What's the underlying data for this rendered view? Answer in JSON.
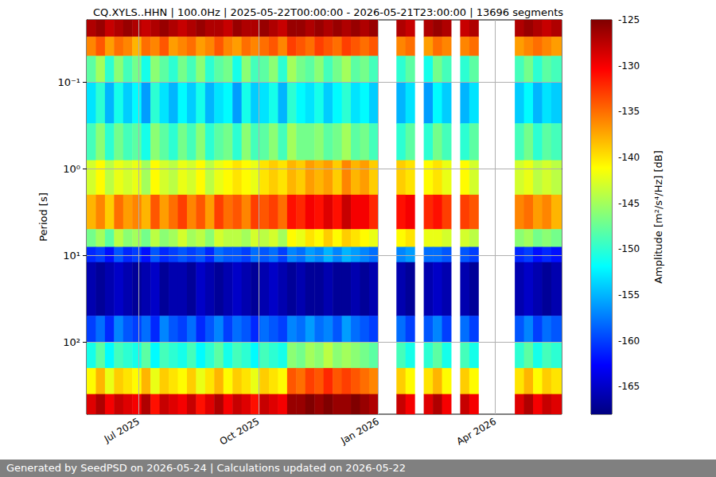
{
  "chart_data": {
    "type": "heatmap",
    "title": "CQ.XYLS..HHN | 100.0Hz | 2025-05-22T00:00:00 - 2026-05-21T23:00:00 | 13696 segments",
    "footer": "Generated by SeedPSD on 2026-05-24 | Calculations updated on 2026-05-22",
    "y_label": "Period [s]",
    "log": "y",
    "grid": true,
    "xlim": [
      "2025-05-22",
      "2026-05-22"
    ],
    "xticks": [
      {
        "value": "2025-07-01",
        "label": "Jul 2025"
      },
      {
        "value": "2025-10-01",
        "label": "Oct 2025"
      },
      {
        "value": "2026-01-01",
        "label": "Jan 2026"
      },
      {
        "value": "2026-04-01",
        "label": "Apr 2026"
      }
    ],
    "ylim": [
      0.0192,
      683
    ],
    "yticks": [
      {
        "value": 0.1,
        "label": "10⁻¹"
      },
      {
        "value": 1,
        "label": "10⁰"
      },
      {
        "value": 10,
        "label": "10¹"
      },
      {
        "value": 100,
        "label": "10²"
      }
    ],
    "time_bins": [
      "2025-05-22",
      "2025-05-29",
      "2025-06-05",
      "2025-06-12",
      "2025-06-19",
      "2025-06-26",
      "2025-07-03",
      "2025-07-10",
      "2025-07-17",
      "2025-07-24",
      "2025-07-31",
      "2025-08-07",
      "2025-08-14",
      "2025-08-21",
      "2025-08-28",
      "2025-09-04",
      "2025-09-11",
      "2025-09-18",
      "2025-09-25",
      "2025-10-02",
      "2025-10-09",
      "2025-10-16",
      "2025-10-23",
      "2025-10-30",
      "2025-11-06",
      "2025-11-13",
      "2025-11-20",
      "2025-11-27",
      "2025-12-04",
      "2025-12-11",
      "2025-12-18",
      "2025-12-25",
      "2026-01-01",
      "2026-01-08",
      "2026-01-15",
      "2026-01-22",
      "2026-01-29",
      "2026-02-05",
      "2026-02-12",
      "2026-02-19",
      "2026-02-26",
      "2026-03-05",
      "2026-03-12",
      "2026-03-19",
      "2026-03-26",
      "2026-04-02",
      "2026-04-09",
      "2026-04-16",
      "2026-04-23",
      "2026-04-30",
      "2026-05-07",
      "2026-05-14",
      "2026-05-22"
    ],
    "period_bins": [
      0.0192,
      0.03,
      0.05,
      0.1,
      0.3,
      0.8,
      2,
      5,
      8,
      12,
      50,
      100,
      200,
      400,
      683
    ],
    "cells": [
      [
        -127,
        -126,
        -128,
        -127,
        -126,
        -127,
        -128,
        -127,
        -126,
        -127,
        -128,
        -127,
        -126,
        -127,
        -127,
        -128,
        -126,
        -127,
        -127,
        -126,
        -127,
        -128,
        -126,
        -126,
        -127,
        -126,
        -127,
        -126,
        -127,
        -126,
        -127,
        -126,
        null,
        null,
        -127,
        -128,
        null,
        -127,
        -126,
        -127,
        null,
        -128,
        -127,
        null,
        null,
        null,
        null,
        -127,
        -126,
        -127,
        -128,
        -127
      ],
      [
        -136,
        -134,
        -137,
        -135,
        -136,
        -138,
        -135,
        -136,
        -134,
        -137,
        -136,
        -135,
        -137,
        -136,
        -134,
        -136,
        -137,
        -135,
        -136,
        -135,
        -134,
        -136,
        -133,
        -134,
        -135,
        -133,
        -134,
        -135,
        -133,
        -134,
        -135,
        -134,
        null,
        null,
        -136,
        -135,
        null,
        -137,
        -135,
        -136,
        null,
        -136,
        -135,
        null,
        null,
        null,
        null,
        -137,
        -136,
        -135,
        -136,
        -137
      ],
      [
        -148,
        -145,
        -150,
        -146,
        -149,
        -147,
        -151,
        -146,
        -148,
        -150,
        -147,
        -149,
        -146,
        -150,
        -148,
        -147,
        -151,
        -146,
        -149,
        -148,
        -146,
        -150,
        -145,
        -147,
        -148,
        -146,
        -149,
        -147,
        -145,
        -148,
        -147,
        -149,
        null,
        null,
        -150,
        -148,
        null,
        -151,
        -147,
        -149,
        null,
        -150,
        -148,
        null,
        null,
        null,
        null,
        -149,
        -147,
        -150,
        -148,
        -149
      ],
      [
        -153,
        -150,
        -155,
        -151,
        -154,
        -152,
        -156,
        -150,
        -153,
        -155,
        -152,
        -154,
        -151,
        -155,
        -153,
        -152,
        -156,
        -151,
        -154,
        -153,
        -151,
        -155,
        -150,
        -152,
        -153,
        -151,
        -154,
        -152,
        -150,
        -153,
        -152,
        -154,
        null,
        null,
        -155,
        -153,
        null,
        -156,
        -152,
        -154,
        null,
        -155,
        -153,
        null,
        null,
        null,
        null,
        -154,
        -152,
        -155,
        -153,
        -154
      ],
      [
        -149,
        -146,
        -150,
        -147,
        -149,
        -148,
        -151,
        -146,
        -148,
        -150,
        -147,
        -149,
        -146,
        -150,
        -148,
        -147,
        -150,
        -146,
        -149,
        -148,
        -146,
        -149,
        -145,
        -147,
        -147,
        -146,
        -148,
        -147,
        -145,
        -148,
        -147,
        -149,
        null,
        null,
        -150,
        -148,
        null,
        -150,
        -147,
        -149,
        null,
        -150,
        -148,
        null,
        null,
        null,
        null,
        -149,
        -147,
        -150,
        -148,
        -149
      ],
      [
        -143,
        -141,
        -144,
        -142,
        -143,
        -142,
        -145,
        -141,
        -143,
        -144,
        -142,
        -143,
        -141,
        -144,
        -142,
        -141,
        -140,
        -141,
        -142,
        -140,
        -139,
        -140,
        -138,
        -139,
        -137,
        -138,
        -137,
        -139,
        -136,
        -138,
        -137,
        -139,
        null,
        null,
        -139,
        -140,
        null,
        -141,
        -140,
        -142,
        null,
        -141,
        -143,
        null,
        null,
        null,
        null,
        -143,
        -142,
        -144,
        -143,
        -144
      ],
      [
        -138,
        -136,
        -139,
        -135,
        -137,
        -136,
        -138,
        -134,
        -137,
        -135,
        -133,
        -136,
        -134,
        -137,
        -133,
        -135,
        -134,
        -136,
        -133,
        -134,
        -133,
        -135,
        -131,
        -132,
        -130,
        -131,
        -129,
        -131,
        -128,
        -130,
        -130,
        -132,
        null,
        null,
        -131,
        -130,
        null,
        -132,
        -131,
        -133,
        null,
        -133,
        -134,
        null,
        null,
        null,
        null,
        -136,
        -135,
        -137,
        -136,
        -138
      ],
      [
        -147,
        -145,
        -148,
        -144,
        -146,
        -145,
        -147,
        -144,
        -146,
        -145,
        -143,
        -145,
        -144,
        -146,
        -143,
        -144,
        -144,
        -145,
        -143,
        -144,
        -143,
        -145,
        -141,
        -142,
        -140,
        -141,
        -139,
        -141,
        -139,
        -140,
        -141,
        -142,
        null,
        null,
        -141,
        -140,
        null,
        -142,
        -142,
        -143,
        null,
        -143,
        -144,
        null,
        null,
        null,
        null,
        -146,
        -145,
        -147,
        -146,
        -147
      ],
      [
        -161,
        -160,
        -162,
        -159,
        -161,
        -160,
        -162,
        -159,
        -161,
        -160,
        -159,
        -160,
        -159,
        -161,
        -158,
        -159,
        -159,
        -160,
        -158,
        -159,
        -158,
        -160,
        -157,
        -158,
        -156,
        -157,
        -155,
        -157,
        -155,
        -156,
        -157,
        -158,
        null,
        null,
        -157,
        -156,
        null,
        -158,
        -158,
        -159,
        null,
        -159,
        -160,
        null,
        null,
        null,
        null,
        -161,
        -160,
        -162,
        -161,
        -162
      ],
      [
        -166,
        -167,
        -166,
        -165,
        -166,
        -167,
        -166,
        -165,
        -167,
        -166,
        -166,
        -167,
        -165,
        -166,
        -167,
        -166,
        -165,
        -166,
        -167,
        -166,
        -165,
        -166,
        -167,
        -166,
        -167,
        -167,
        -166,
        -167,
        -167,
        -166,
        -167,
        -166,
        null,
        null,
        -166,
        -167,
        null,
        -166,
        -165,
        -166,
        null,
        -166,
        -167,
        null,
        null,
        null,
        null,
        -166,
        -165,
        -166,
        -167,
        -166
      ],
      [
        -160,
        -158,
        -161,
        -157,
        -159,
        -160,
        -158,
        -161,
        -157,
        -159,
        -160,
        -158,
        -161,
        -159,
        -157,
        -160,
        -158,
        -159,
        -161,
        -158,
        -159,
        -160,
        -157,
        -158,
        -156,
        -158,
        -157,
        -159,
        -156,
        -158,
        -159,
        -160,
        null,
        null,
        -158,
        -160,
        null,
        -159,
        -157,
        -160,
        null,
        -158,
        -160,
        null,
        null,
        null,
        null,
        -159,
        -157,
        -160,
        -158,
        -159
      ],
      [
        -151,
        -148,
        -152,
        -149,
        -150,
        -151,
        -148,
        -152,
        -149,
        -150,
        -151,
        -149,
        -152,
        -150,
        -148,
        -151,
        -149,
        -150,
        -152,
        -149,
        -150,
        -151,
        -146,
        -147,
        -145,
        -146,
        -144,
        -146,
        -145,
        -146,
        -147,
        -148,
        null,
        null,
        -149,
        -151,
        null,
        -150,
        -148,
        -151,
        null,
        -149,
        -151,
        null,
        null,
        null,
        null,
        -150,
        -148,
        -151,
        -149,
        -150
      ],
      [
        -141,
        -138,
        -142,
        -139,
        -140,
        -141,
        -138,
        -142,
        -139,
        -140,
        -141,
        -139,
        -142,
        -140,
        -138,
        -141,
        -139,
        -140,
        -142,
        -139,
        -140,
        -141,
        -134,
        -135,
        -133,
        -134,
        -132,
        -134,
        -133,
        -134,
        -135,
        -136,
        null,
        null,
        -139,
        -141,
        null,
        -140,
        -138,
        -141,
        null,
        -139,
        -141,
        null,
        null,
        null,
        null,
        -140,
        -138,
        -141,
        -139,
        -140
      ],
      [
        -129,
        -127,
        -130,
        -128,
        -129,
        -130,
        -127,
        -131,
        -128,
        -129,
        -130,
        -128,
        -131,
        -129,
        -127,
        -130,
        -128,
        -129,
        -131,
        -128,
        -129,
        -130,
        -126,
        -126,
        -125,
        -126,
        -125,
        -126,
        -126,
        -125,
        -126,
        -127,
        null,
        null,
        -128,
        -130,
        null,
        -129,
        -127,
        -130,
        null,
        -128,
        -130,
        null,
        null,
        null,
        null,
        -129,
        -127,
        -130,
        -128,
        -129
      ]
    ],
    "colorbar": {
      "label": "Amplitude [m²/s⁴/Hz] [dB]",
      "range": [
        -168,
        -125
      ],
      "ticks": [
        -165,
        -160,
        -155,
        -150,
        -145,
        -140,
        -135,
        -130,
        -125
      ]
    }
  }
}
